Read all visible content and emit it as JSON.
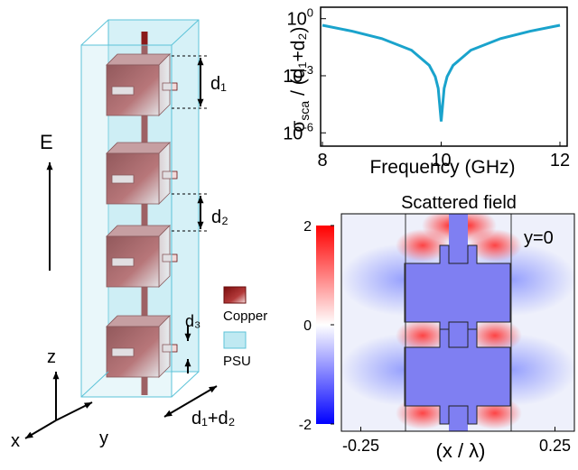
{
  "diagram": {
    "labels": {
      "d1": "d₁",
      "d2": "d₂",
      "d3": "d₃",
      "field": "E",
      "period": "d₁+d₂",
      "axis_x": "x",
      "axis_y": "y",
      "axis_z": "z"
    },
    "legend": [
      {
        "name": "Copper",
        "color": "#a01c1c"
      },
      {
        "name": "PSU",
        "color": "#bfe9f2"
      }
    ]
  },
  "chart_data": [
    {
      "type": "line",
      "log_y": true,
      "y_label": {
        "symbol": "σ",
        "subscript": "sca",
        "rest": " / (d₁+d₂)"
      },
      "x_label": "Frequency (GHz)",
      "x": [
        8,
        8.5,
        9,
        9.5,
        9.8,
        9.9,
        9.95,
        10,
        10.05,
        10.1,
        10.2,
        10.5,
        11,
        11.5,
        12
      ],
      "series": [
        {
          "color": "#1aa3cc",
          "values": [
            0.45,
            0.22,
            0.09,
            0.022,
            0.0035,
            0.0009,
            0.00022,
            4e-06,
            0.00022,
            0.0009,
            0.0035,
            0.022,
            0.09,
            0.22,
            0.45
          ]
        }
      ],
      "xlim": [
        8,
        12
      ],
      "xticks": [
        8,
        10,
        12
      ],
      "ylim": [
        2e-07,
        4
      ],
      "yticks": [
        {
          "value": 1,
          "label": "10",
          "exponent": "0"
        },
        {
          "value": 0.001,
          "label": "10",
          "exponent": "-3"
        },
        {
          "value": 1e-06,
          "label": "10",
          "exponent": "-6"
        }
      ]
    },
    {
      "type": "heatmap",
      "title": "Scattered field",
      "annotation": "y=0",
      "x_label": "(x / λ)",
      "xlim": [
        -0.3,
        0.3
      ],
      "xticks": [
        -0.25,
        0.25
      ],
      "clim": [
        -2,
        2
      ],
      "cticks": [
        2,
        0,
        -2
      ]
    }
  ]
}
